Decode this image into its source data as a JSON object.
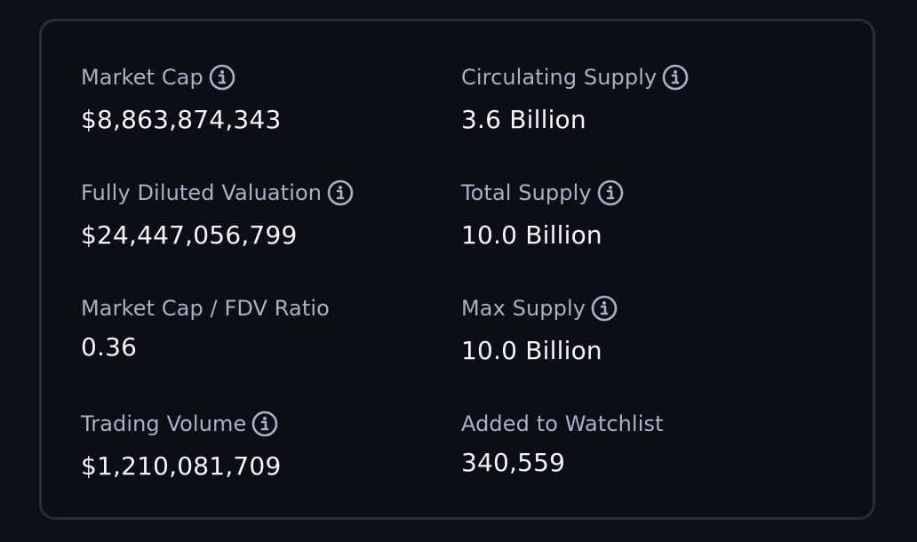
{
  "stats": [
    {
      "label": "Market Cap",
      "value": "$8,863,874,343",
      "has_info": true
    },
    {
      "label": "Circulating Supply",
      "value": "3.6 Billion",
      "has_info": true
    },
    {
      "label": "Fully Diluted Valuation",
      "value": "$24,447,056,799",
      "has_info": true
    },
    {
      "label": "Total Supply",
      "value": "10.0 Billion",
      "has_info": true
    },
    {
      "label": "Market Cap / FDV Ratio",
      "value": "0.36",
      "has_info": false
    },
    {
      "label": "Max Supply",
      "value": "10.0 Billion",
      "has_info": true
    },
    {
      "label": "Trading Volume",
      "value": "$1,210,081,709",
      "has_info": true
    },
    {
      "label": "Added to Watchlist",
      "value": "340,559",
      "has_info": false
    }
  ],
  "icons": {
    "info": "info-circle-icon"
  },
  "colors": {
    "background": "#0d1117",
    "card_border": "#262e3a",
    "label": "#a6b2c7",
    "value": "#f2f4f7"
  }
}
